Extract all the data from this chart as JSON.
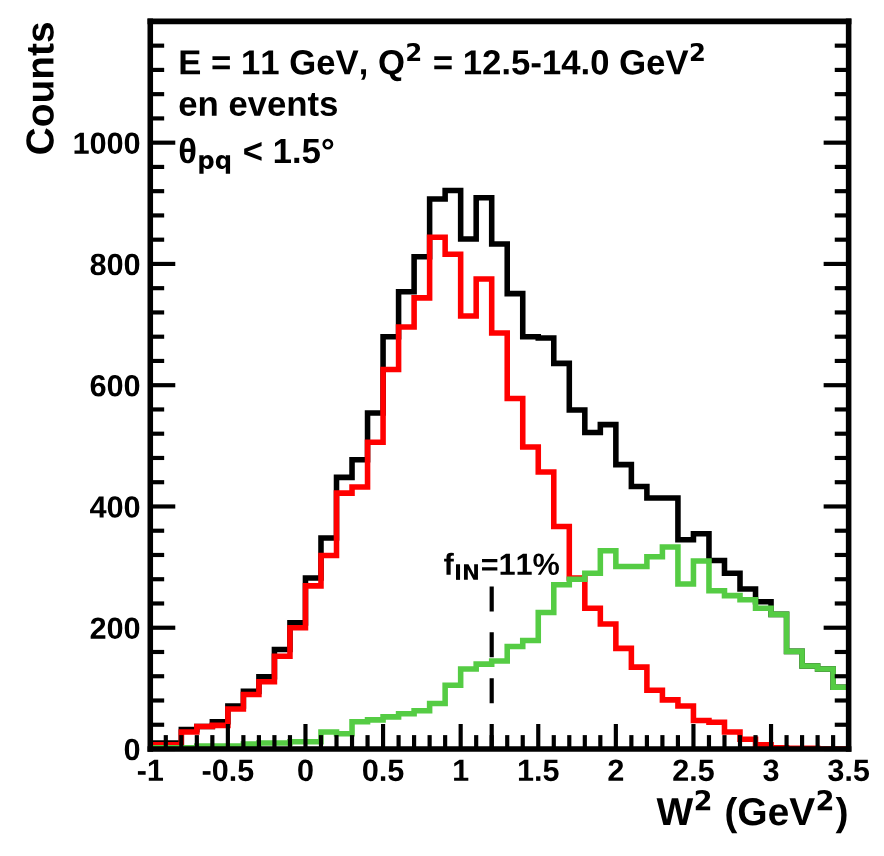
{
  "chart_data": {
    "type": "histogram",
    "xlabel": "W$^{2}$ (GeV$^{2}$)",
    "ylabel": "Counts",
    "bins": [
      -1.0,
      -0.9,
      -0.8,
      -0.7,
      -0.6,
      -0.5,
      -0.4,
      -0.3,
      -0.2,
      -0.1,
      0.0,
      0.1,
      0.2,
      0.3,
      0.4,
      0.5,
      0.6,
      0.7,
      0.8,
      0.9,
      1.0,
      1.1,
      1.2,
      1.3,
      1.4,
      1.5,
      1.6,
      1.7,
      1.8,
      1.9,
      2.0,
      2.1,
      2.2,
      2.3,
      2.4,
      2.5,
      2.6,
      2.7,
      2.8,
      2.9,
      3.0,
      3.1,
      3.2,
      3.3,
      3.4,
      3.5
    ],
    "series": [
      {
        "color": "#000000",
        "values": [
          10,
          10,
          32,
          37,
          45,
          71,
          95,
          119,
          164,
          208,
          282,
          348,
          448,
          477,
          554,
          680,
          754,
          812,
          907,
          921,
          841,
          909,
          833,
          751,
          680,
          678,
          636,
          559,
          522,
          535,
          469,
          433,
          414,
          414,
          345,
          355,
          311,
          290,
          264,
          243,
          222,
          161,
          137,
          132,
          102
        ]
      },
      {
        "color": "#ff0000",
        "values": [
          7,
          7,
          28,
          37,
          39,
          66,
          90,
          111,
          153,
          200,
          269,
          319,
          422,
          432,
          506,
          626,
          696,
          744,
          844,
          816,
          714,
          775,
          686,
          578,
          498,
          457,
          367,
          282,
          232,
          206,
          166,
          135,
          97,
          81,
          71,
          47,
          44,
          28,
          16,
          7,
          2,
          1,
          1,
          0,
          0
        ]
      },
      {
        "color": "#55cc44",
        "values": [
          2,
          2,
          2,
          5,
          5,
          5,
          8,
          10,
          10,
          12,
          12,
          28,
          25,
          45,
          48,
          53,
          58,
          63,
          75,
          105,
          132,
          140,
          145,
          169,
          179,
          225,
          271,
          280,
          290,
          327,
          301,
          301,
          317,
          333,
          272,
          310,
          261,
          253,
          246,
          232,
          222,
          161,
          137,
          132,
          102
        ]
      }
    ],
    "xlim": [
      -1,
      3.5
    ],
    "ylim": [
      0,
      1200
    ],
    "xticks": [
      -1,
      -0.5,
      0,
      0.5,
      1,
      1.5,
      2,
      2.5,
      3,
      3.5
    ],
    "yticks": [
      0,
      200,
      400,
      600,
      800,
      1000
    ],
    "ref_lines": [
      {
        "axis": "x",
        "value": 1.2,
        "line_style": "dashed",
        "color": "#000000"
      }
    ],
    "annotations": [
      "E = 11 GeV, Q$^{2}$ = 12.5-14.0 GeV$^{2}$",
      "en events",
      "θ$_{pq}$ < 1.5°",
      "f$_{IN}$=11%"
    ],
    "grid": false,
    "legend": false
  }
}
